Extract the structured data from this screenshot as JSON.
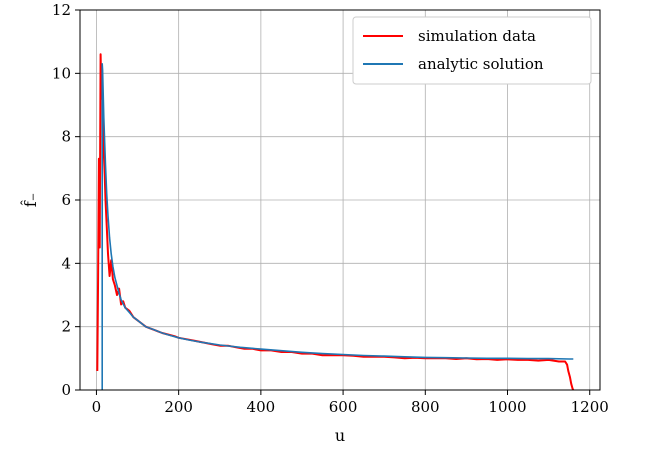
{
  "chart_data": {
    "type": "line",
    "xlabel": "u",
    "ylabel": "f̂₋",
    "xlim": [
      -40,
      1225
    ],
    "ylim": [
      0,
      12
    ],
    "xticks": [
      0,
      200,
      400,
      600,
      800,
      1000,
      1200
    ],
    "yticks": [
      0,
      2,
      4,
      6,
      8,
      10,
      12
    ],
    "grid": true,
    "legend_position": "top-right",
    "series": [
      {
        "name": "simulation data",
        "color": "#ff0000",
        "x": [
          2,
          4,
          6,
          8,
          10,
          12,
          14,
          16,
          18,
          20,
          22,
          25,
          28,
          32,
          36,
          40,
          45,
          50,
          55,
          60,
          65,
          70,
          80,
          90,
          100,
          110,
          120,
          130,
          140,
          150,
          160,
          175,
          190,
          200,
          220,
          240,
          260,
          280,
          300,
          320,
          340,
          360,
          380,
          400,
          425,
          450,
          475,
          500,
          525,
          550,
          575,
          600,
          625,
          650,
          675,
          700,
          725,
          750,
          775,
          800,
          825,
          850,
          875,
          900,
          925,
          950,
          975,
          1000,
          1025,
          1050,
          1075,
          1100,
          1125,
          1140,
          1145,
          1148,
          1152,
          1155,
          1158,
          1160
        ],
        "y": [
          0.6,
          3.6,
          7.3,
          4.5,
          10.6,
          9.2,
          9.9,
          8.1,
          7.5,
          6.8,
          6.0,
          5.2,
          4.3,
          3.6,
          4.1,
          3.5,
          3.3,
          3.0,
          3.2,
          2.7,
          2.8,
          2.6,
          2.5,
          2.3,
          2.2,
          2.1,
          2.0,
          1.95,
          1.9,
          1.85,
          1.8,
          1.75,
          1.7,
          1.65,
          1.6,
          1.55,
          1.5,
          1.45,
          1.4,
          1.4,
          1.35,
          1.3,
          1.3,
          1.25,
          1.25,
          1.2,
          1.2,
          1.15,
          1.15,
          1.1,
          1.1,
          1.1,
          1.08,
          1.05,
          1.05,
          1.05,
          1.03,
          1.0,
          1.02,
          1.0,
          1.0,
          1.0,
          0.98,
          1.0,
          0.97,
          0.98,
          0.95,
          0.97,
          0.95,
          0.95,
          0.93,
          0.95,
          0.9,
          0.9,
          0.8,
          0.6,
          0.4,
          0.2,
          0.05,
          0.0
        ]
      },
      {
        "name": "analytic solution",
        "color": "#1f77b4",
        "x": [
          14,
          14,
          15,
          16,
          17,
          18,
          20,
          22,
          25,
          28,
          32,
          36,
          40,
          45,
          50,
          55,
          60,
          70,
          80,
          90,
          100,
          120,
          140,
          160,
          180,
          200,
          225,
          250,
          275,
          300,
          350,
          400,
          450,
          500,
          550,
          600,
          650,
          700,
          750,
          800,
          850,
          900,
          950,
          1000,
          1050,
          1100,
          1150,
          1160
        ],
        "y": [
          0.0,
          10.3,
          10.1,
          9.6,
          9.1,
          8.6,
          7.8,
          7.1,
          6.2,
          5.5,
          4.8,
          4.3,
          3.9,
          3.55,
          3.3,
          3.05,
          2.85,
          2.6,
          2.45,
          2.3,
          2.2,
          2.0,
          1.9,
          1.8,
          1.72,
          1.65,
          1.58,
          1.52,
          1.47,
          1.42,
          1.35,
          1.29,
          1.24,
          1.19,
          1.15,
          1.12,
          1.09,
          1.07,
          1.05,
          1.03,
          1.02,
          1.01,
          1.0,
          1.0,
          0.99,
          0.99,
          0.98,
          0.98
        ]
      }
    ]
  }
}
